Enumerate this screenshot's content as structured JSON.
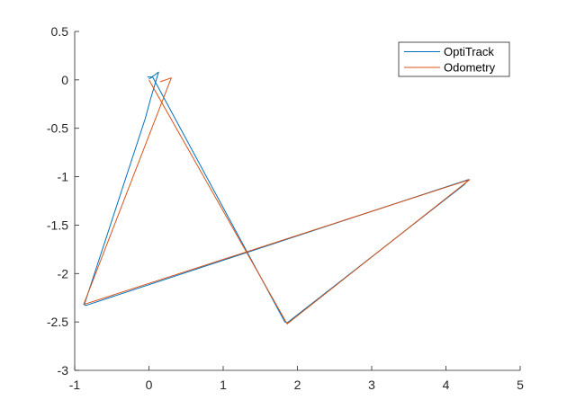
{
  "chart_data": {
    "type": "line",
    "title": "",
    "xlabel": "",
    "ylabel": "",
    "xlim": [
      -1,
      5
    ],
    "ylim": [
      -3,
      0.5
    ],
    "xticks": [
      -1,
      0,
      1,
      2,
      3,
      4,
      5
    ],
    "yticks": [
      0.5,
      0,
      -0.5,
      -1,
      -1.5,
      -2,
      -2.5,
      -3
    ],
    "xtick_labels": [
      "-1",
      "0",
      "1",
      "2",
      "3",
      "4",
      "5"
    ],
    "ytick_labels": [
      "0.5",
      "0",
      "-0.5",
      "-1",
      "-1.5",
      "-2",
      "-2.5",
      "-3"
    ],
    "grid": false,
    "legend_position": "top-right",
    "series": [
      {
        "name": "OptiTrack",
        "color": "#0072BD",
        "x": [
          -0.02,
          0.04,
          0.13,
          0.02,
          -0.05,
          -0.87,
          -0.85,
          4.3,
          4.25,
          1.86,
          1.83,
          0.05,
          0.0
        ],
        "y": [
          0.03,
          0.03,
          0.08,
          -0.2,
          -0.4,
          -2.32,
          -2.33,
          -1.03,
          -1.08,
          -2.51,
          -2.5,
          0.03,
          0.01
        ]
      },
      {
        "name": "Odometry",
        "color": "#D95319",
        "x": [
          0.15,
          0.3,
          -0.88,
          4.32,
          1.86,
          0.0
        ],
        "y": [
          -0.02,
          0.02,
          -2.32,
          -1.03,
          -2.52,
          0.0
        ]
      }
    ]
  }
}
